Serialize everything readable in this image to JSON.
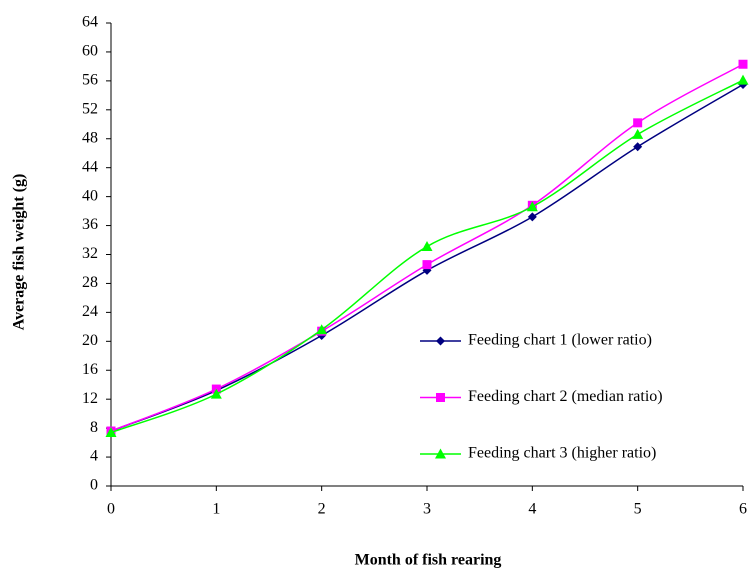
{
  "chart_data": {
    "type": "line",
    "x_label": "Month of fish rearing",
    "y_label": "Average fish weight (g)",
    "x": [
      0,
      1,
      2,
      3,
      4,
      5,
      6
    ],
    "series": [
      {
        "name": "Feeding chart 1 (lower ratio)",
        "color": "#000080",
        "marker": "diamond",
        "values": [
          7.6,
          13.2,
          20.8,
          29.8,
          37.2,
          46.9,
          55.5
        ]
      },
      {
        "name": "Feeding chart 2 (median ratio)",
        "color": "#ff00ff",
        "marker": "square",
        "values": [
          7.6,
          13.4,
          21.4,
          30.6,
          38.8,
          50.2,
          58.3
        ]
      },
      {
        "name": "Feeding chart 3 (higher ratio)",
        "color": "#00ff00",
        "marker": "triangle",
        "values": [
          7.4,
          12.7,
          21.6,
          33.1,
          38.6,
          48.6,
          56.1
        ]
      }
    ],
    "xlim": [
      0,
      6
    ],
    "xticks": [
      0,
      1,
      2,
      3,
      4,
      5,
      6
    ],
    "ylim": [
      0,
      64
    ],
    "yticks": [
      0,
      4,
      8,
      12,
      16,
      20,
      24,
      28,
      32,
      36,
      40,
      44,
      48,
      52,
      56,
      60,
      64
    ],
    "grid": false,
    "smooth": true,
    "legend": "lower right"
  }
}
